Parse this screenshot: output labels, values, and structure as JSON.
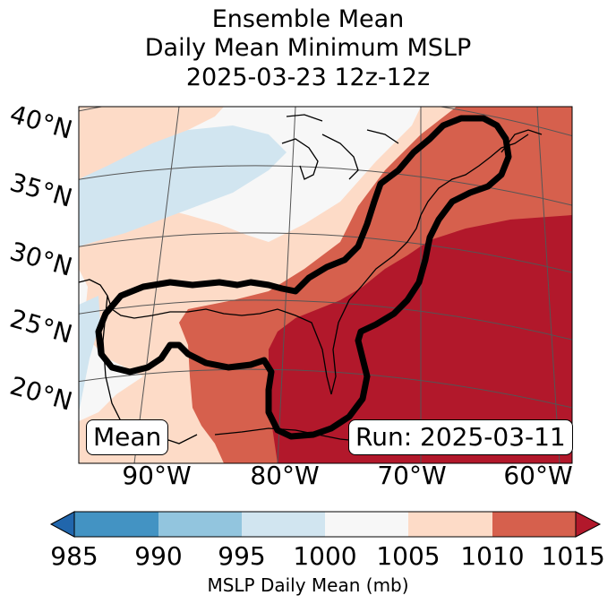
{
  "title": {
    "line1": "Ensemble Mean",
    "line2": "Daily Mean Minimum MSLP",
    "line3": "2025-03-23 12z-12z"
  },
  "lat_labels": [
    "40°N",
    "35°N",
    "30°N",
    "25°N",
    "20°N"
  ],
  "lon_labels": [
    "90°W",
    "80°W",
    "70°W",
    "60°W"
  ],
  "map_extent": {
    "lon_min": -97,
    "lon_max": -58,
    "lat_min": 15,
    "lat_max": 42
  },
  "mean_label": "Mean",
  "run_label": "Run: 2025-03-11",
  "colorbar": {
    "label": "MSLP Daily Mean (mb)",
    "ticks": [
      "985",
      "990",
      "995",
      "1000",
      "1005",
      "1010",
      "1015"
    ],
    "colors": [
      "#2166ac",
      "#4393c3",
      "#92c5de",
      "#d1e5f0",
      "#f7f7f7",
      "#fddbc7",
      "#d6604d",
      "#b2182b"
    ],
    "extend": "both"
  }
}
